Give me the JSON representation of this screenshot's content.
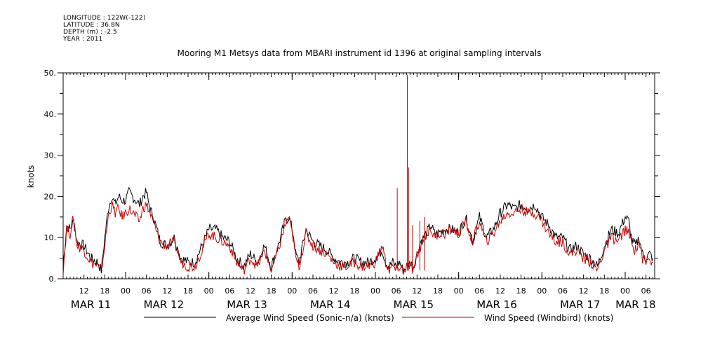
{
  "meta": {
    "longitude": "LONGITUDE : 122W(-122)",
    "latitude": "LATITUDE : 36.8N",
    "depth": "DEPTH (m) : -2.5",
    "year": "YEAR : 2011"
  },
  "colors": {
    "series0": "#000000",
    "series1": "#cc0000"
  },
  "chart_data": {
    "type": "line",
    "title": "Mooring M1 Metsys data from MBARI instrument id 1396 at original sampling intervals",
    "ylabel": "knots",
    "xlabel": "",
    "ylim": [
      0,
      50
    ],
    "xlim_hours": [
      0,
      170.5
    ],
    "y_ticks": [
      "0.",
      "10.",
      "20.",
      "30.",
      "40.",
      "50."
    ],
    "x_hour_ticks": [
      {
        "label": "12",
        "h": 6
      },
      {
        "label": "18",
        "h": 12
      },
      {
        "label": "00",
        "h": 18
      },
      {
        "label": "06",
        "h": 24
      },
      {
        "label": "12",
        "h": 30
      },
      {
        "label": "18",
        "h": 36
      },
      {
        "label": "00",
        "h": 42
      },
      {
        "label": "06",
        "h": 48
      },
      {
        "label": "12",
        "h": 54
      },
      {
        "label": "18",
        "h": 60
      },
      {
        "label": "00",
        "h": 66
      },
      {
        "label": "06",
        "h": 72
      },
      {
        "label": "12",
        "h": 78
      },
      {
        "label": "18",
        "h": 84
      },
      {
        "label": "00",
        "h": 90
      },
      {
        "label": "06",
        "h": 96
      },
      {
        "label": "12",
        "h": 102
      },
      {
        "label": "18",
        "h": 108
      },
      {
        "label": "00",
        "h": 114
      },
      {
        "label": "06",
        "h": 120
      },
      {
        "label": "12",
        "h": 126
      },
      {
        "label": "18",
        "h": 132
      },
      {
        "label": "00",
        "h": 138
      },
      {
        "label": "06",
        "h": 144
      },
      {
        "label": "12",
        "h": 150
      },
      {
        "label": "18",
        "h": 156
      },
      {
        "label": "00",
        "h": 162
      },
      {
        "label": "06",
        "h": 168
      }
    ],
    "x_date_labels": [
      {
        "label": "MAR 11",
        "h": 8
      },
      {
        "label": "MAR 12",
        "h": 29
      },
      {
        "label": "MAR 13",
        "h": 53
      },
      {
        "label": "MAR 14",
        "h": 77
      },
      {
        "label": "MAR 15",
        "h": 101
      },
      {
        "label": "MAR 16",
        "h": 125
      },
      {
        "label": "MAR 17",
        "h": 149
      },
      {
        "label": "MAR 18",
        "h": 165
      }
    ],
    "series": [
      {
        "name": "Average Wind Speed (Sonic-n/a) (knots)",
        "x": [
          0,
          1,
          2,
          3,
          4,
          6,
          8,
          10,
          11,
          12,
          13,
          14,
          15,
          16,
          17,
          18,
          19,
          20,
          21,
          22,
          23,
          24,
          25,
          26,
          27,
          28,
          30,
          32,
          34,
          36,
          38,
          40,
          42,
          44,
          46,
          48,
          50,
          52,
          54,
          56,
          58,
          60,
          62,
          64,
          65,
          66,
          66.5,
          67,
          68,
          70,
          72,
          74,
          76,
          78,
          80,
          82,
          84,
          86,
          88,
          90,
          91,
          92,
          93,
          94,
          95,
          96,
          97,
          98,
          99,
          100,
          101,
          102,
          103,
          104,
          106,
          107,
          108,
          110,
          112,
          114,
          116,
          118,
          120,
          122,
          124,
          126,
          128,
          130,
          132,
          134,
          136,
          138,
          140,
          142,
          144,
          146,
          148,
          150,
          152,
          154,
          156,
          158,
          160,
          162,
          163,
          164,
          165,
          166,
          167,
          168,
          169,
          170
        ],
        "y": [
          3,
          13,
          12,
          14,
          9,
          8,
          5,
          4,
          2,
          10,
          17,
          20,
          18,
          20,
          19,
          19,
          21,
          20,
          19,
          18,
          20,
          21,
          17,
          15,
          12,
          9,
          8,
          10,
          5,
          4,
          4,
          8,
          12,
          12,
          10,
          9,
          5,
          3,
          6,
          4,
          8,
          3,
          8,
          14,
          15,
          12,
          10,
          6,
          4,
          12,
          9,
          8,
          7,
          5,
          4,
          4,
          5,
          4,
          4,
          5,
          6,
          7,
          4,
          3,
          4,
          3,
          4,
          2,
          3,
          4,
          3,
          6,
          9,
          10,
          13,
          11,
          11,
          12,
          12,
          11,
          15,
          9,
          15,
          10,
          12,
          16,
          18,
          17,
          18,
          17,
          18,
          15,
          13,
          10,
          10,
          7,
          8,
          6,
          5,
          3,
          8,
          12,
          11,
          15,
          14,
          9,
          8,
          10,
          6,
          5,
          6,
          5
        ]
      },
      {
        "name": "Wind Speed (Windbird) (knots)",
        "x": [
          0,
          1,
          2,
          3,
          4,
          6,
          8,
          10,
          11,
          12,
          13,
          14,
          15,
          16,
          17,
          18,
          19,
          20,
          21,
          22,
          23,
          24,
          25,
          26,
          27,
          28,
          30,
          32,
          34,
          36,
          38,
          40,
          42,
          44,
          46,
          48,
          50,
          52,
          54,
          56,
          58,
          60,
          62,
          64,
          65,
          66,
          66.5,
          67,
          68,
          70,
          72,
          74,
          76,
          78,
          80,
          82,
          84,
          86,
          88,
          90,
          91,
          92,
          93,
          94,
          95,
          96,
          97,
          98,
          99,
          100,
          101,
          102,
          103,
          104,
          106,
          107,
          108,
          110,
          112,
          114,
          116,
          118,
          120,
          122,
          124,
          126,
          128,
          130,
          132,
          134,
          136,
          138,
          140,
          142,
          144,
          146,
          148,
          150,
          152,
          154,
          156,
          158,
          160,
          162,
          163,
          164,
          165,
          166,
          167,
          168,
          169,
          170
        ],
        "y": [
          2,
          12,
          11,
          15,
          8,
          7,
          4,
          3,
          2,
          8,
          15,
          18,
          16,
          17,
          15,
          16,
          17,
          16,
          15,
          14,
          17,
          18,
          16,
          14,
          11,
          9,
          8,
          9,
          4,
          3,
          3,
          7,
          11,
          10,
          9,
          8,
          4,
          2,
          5,
          3,
          7,
          2,
          7,
          13,
          15,
          11,
          9,
          5,
          3,
          11,
          8,
          7,
          6,
          4,
          3,
          3,
          4,
          3,
          3,
          4,
          6,
          8,
          4,
          2,
          3,
          2,
          3,
          2,
          3,
          3,
          2,
          5,
          8,
          10,
          12,
          10,
          11,
          11,
          12,
          11,
          14,
          9,
          14,
          9,
          11,
          14,
          16,
          16,
          17,
          16,
          16,
          14,
          11,
          9,
          9,
          6,
          7,
          5,
          4,
          2,
          7,
          10,
          9,
          12,
          11,
          8,
          7,
          9,
          5,
          4,
          5,
          4
        ],
        "spikes": [
          {
            "x": 96.3,
            "y": 22
          },
          {
            "x": 99.2,
            "y": 49.5
          },
          {
            "x": 99.6,
            "y": 27
          },
          {
            "x": 100.7,
            "y": 13
          },
          {
            "x": 102.8,
            "y": 14
          },
          {
            "x": 104.1,
            "y": 15
          }
        ]
      }
    ],
    "legend": "bottom"
  }
}
